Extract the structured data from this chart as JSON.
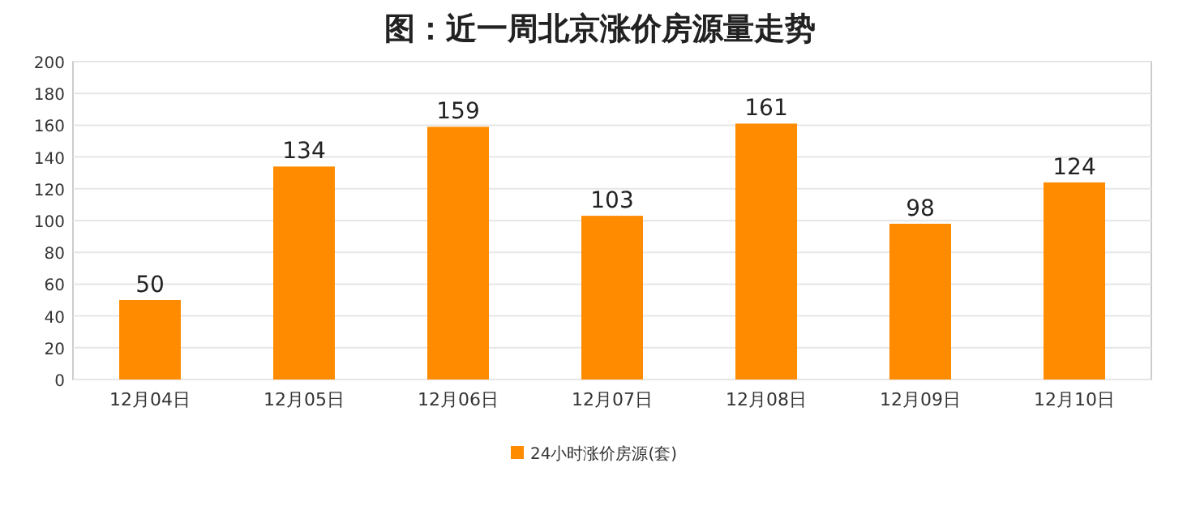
{
  "chart_data": {
    "type": "bar",
    "title": "图：近一周北京涨价房源量走势",
    "categories": [
      "12月04日",
      "12月05日",
      "12月06日",
      "12月07日",
      "12月08日",
      "12月09日",
      "12月10日"
    ],
    "series": [
      {
        "name": "24小时涨价房源(套)",
        "color": "#ff8c00",
        "values": [
          50,
          134,
          159,
          103,
          161,
          98,
          124
        ]
      }
    ],
    "ylim": [
      0,
      200
    ],
    "yticks": [
      0,
      20,
      40,
      60,
      80,
      100,
      120,
      140,
      160,
      180,
      200
    ],
    "grid": "y",
    "data_labels": true,
    "legend": "bottom"
  }
}
